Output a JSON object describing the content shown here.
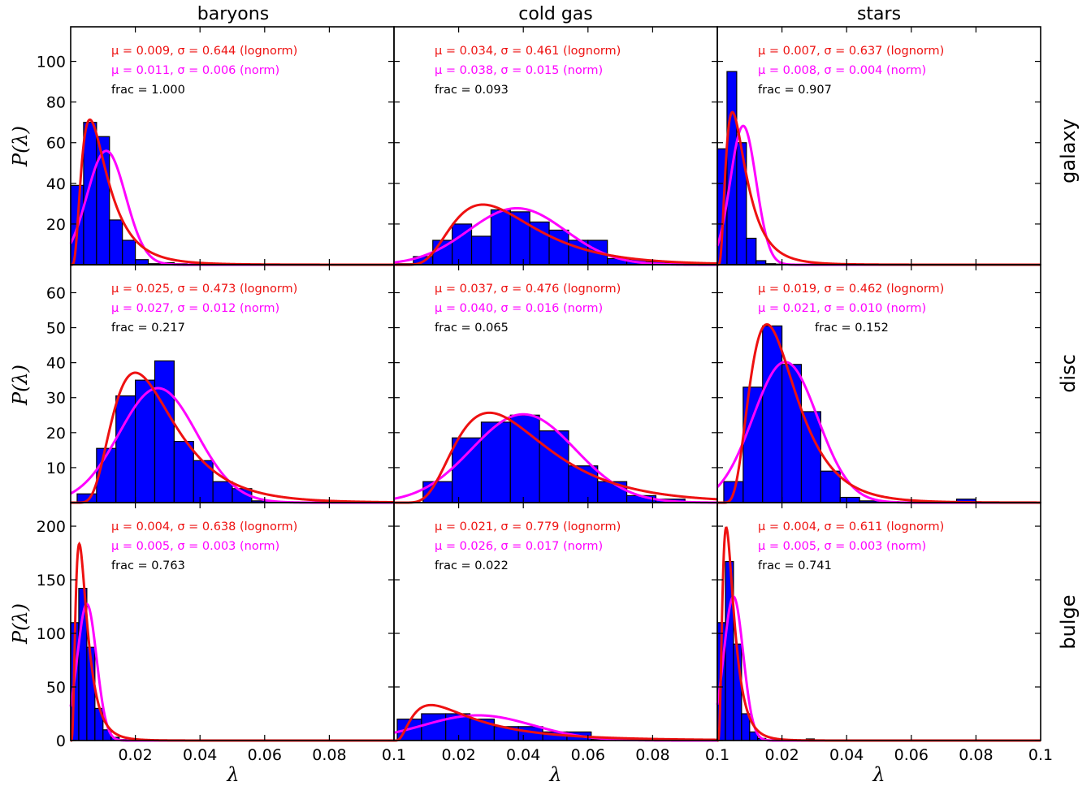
{
  "figure": {
    "col_titles": [
      "baryons",
      "cold gas",
      "stars"
    ],
    "row_titles": [
      "galaxy",
      "disc",
      "bulge"
    ],
    "xlabel": "λ",
    "ylabel": "P(λ)",
    "xlim": [
      0,
      0.1
    ],
    "x_ticks": [
      "0.02",
      "0.04",
      "0.06",
      "0.08",
      "0.1"
    ],
    "colors": {
      "lognorm": "#ee1111",
      "norm": "#ff00ff",
      "hist": "#0000ff",
      "frac": "#000000"
    }
  },
  "chart_data": [
    {
      "type": "bar",
      "row": "galaxy",
      "col": "baryons",
      "ylim": [
        0,
        117
      ],
      "yticks": [
        20,
        40,
        60,
        80,
        100
      ],
      "ann_mu_sigma_lognorm": "μ = 0.009, σ = 0.644 (lognorm)",
      "ann_mu_sigma_norm": "μ = 0.011, σ = 0.006 (norm)",
      "ann_frac": "frac = 1.000",
      "lognorm": {
        "mu": 0.009,
        "sigma": 0.644
      },
      "norm": {
        "mu": 0.011,
        "sigma": 0.006
      },
      "frac": 1.0,
      "bin_width": 0.004,
      "bin_start": 0,
      "hist": [
        39,
        70,
        63,
        22,
        12,
        2.5,
        0.5,
        1,
        0.5
      ]
    },
    {
      "type": "bar",
      "row": "galaxy",
      "col": "cold gas",
      "ylim": [
        0,
        117
      ],
      "yticks": [
        20,
        40,
        60,
        80,
        100
      ],
      "ann_mu_sigma_lognorm": "μ = 0.034, σ = 0.461 (lognorm)",
      "ann_mu_sigma_norm": "μ = 0.038, σ = 0.015 (norm)",
      "ann_frac": "frac = 0.093",
      "lognorm": {
        "mu": 0.034,
        "sigma": 0.461
      },
      "norm": {
        "mu": 0.038,
        "sigma": 0.015
      },
      "frac": 0.093,
      "bin_width": 0.006,
      "bin_start": 0,
      "hist": [
        0.5,
        4,
        12,
        20,
        14,
        27,
        26,
        21,
        17,
        12,
        12,
        3,
        2.5,
        1.5,
        1,
        0.5
      ]
    },
    {
      "type": "bar",
      "row": "galaxy",
      "col": "stars",
      "ylim": [
        0,
        117
      ],
      "yticks": [
        20,
        40,
        60,
        80,
        100
      ],
      "ann_mu_sigma_lognorm": "μ = 0.007, σ = 0.637 (lognorm)",
      "ann_mu_sigma_norm": "μ = 0.008, σ = 0.004 (norm)",
      "ann_frac": "frac = 0.907",
      "lognorm": {
        "mu": 0.007,
        "sigma": 0.637
      },
      "norm": {
        "mu": 0.008,
        "sigma": 0.004
      },
      "frac": 0.907,
      "bin_width": 0.003,
      "bin_start": 0,
      "hist": [
        57,
        95,
        60,
        13,
        2,
        0.5,
        0.3,
        0.3
      ]
    },
    {
      "type": "bar",
      "row": "disc",
      "col": "baryons",
      "ylim": [
        0,
        68
      ],
      "yticks": [
        10,
        20,
        30,
        40,
        50,
        60
      ],
      "ann_mu_sigma_lognorm": "μ = 0.025, σ = 0.473 (lognorm)",
      "ann_mu_sigma_norm": "μ = 0.027, σ = 0.012 (norm)",
      "ann_frac": "frac = 0.217",
      "lognorm": {
        "mu": 0.025,
        "sigma": 0.473
      },
      "norm": {
        "mu": 0.027,
        "sigma": 0.012
      },
      "frac": 0.217,
      "bin_width": 0.006,
      "bin_start": 0.002,
      "hist": [
        2.5,
        15.5,
        30.5,
        35,
        40.5,
        17.5,
        12,
        6,
        4,
        0.5
      ]
    },
    {
      "type": "bar",
      "row": "disc",
      "col": "cold gas",
      "ylim": [
        0,
        68
      ],
      "yticks": [
        10,
        20,
        30,
        40,
        50,
        60
      ],
      "ann_mu_sigma_lognorm": "μ = 0.037, σ = 0.476 (lognorm)",
      "ann_mu_sigma_norm": "μ = 0.040, σ = 0.016 (norm)",
      "ann_frac": "frac = 0.065",
      "lognorm": {
        "mu": 0.037,
        "sigma": 0.476
      },
      "norm": {
        "mu": 0.04,
        "sigma": 0.016
      },
      "frac": 0.065,
      "bin_width": 0.009,
      "bin_start": 0.009,
      "hist": [
        6,
        18.5,
        23,
        25,
        20.5,
        10.5,
        6,
        2,
        1
      ]
    },
    {
      "type": "bar",
      "row": "disc",
      "col": "stars",
      "ylim": [
        0,
        68
      ],
      "yticks": [
        10,
        20,
        30,
        40,
        50,
        60
      ],
      "ann_mu_sigma_lognorm": "μ = 0.019, σ = 0.462 (lognorm)",
      "ann_mu_sigma_norm": "μ = 0.021, σ = 0.010 (norm)",
      "ann_frac": "frac = 0.152",
      "lognorm": {
        "mu": 0.019,
        "sigma": 0.462
      },
      "norm": {
        "mu": 0.021,
        "sigma": 0.01
      },
      "frac": 0.152,
      "bin_width": 0.006,
      "bin_start": 0.002,
      "hist": [
        6,
        33,
        50.5,
        39.5,
        26,
        9,
        1.5,
        0.5,
        0.3,
        0.2,
        0.2,
        0.2,
        1
      ]
    },
    {
      "type": "bar",
      "row": "bulge",
      "col": "baryons",
      "ylim": [
        0,
        222
      ],
      "yticks": [
        0,
        50,
        100,
        150,
        200
      ],
      "ann_mu_sigma_lognorm": "μ = 0.004, σ = 0.638 (lognorm)",
      "ann_mu_sigma_norm": "μ = 0.005, σ = 0.003 (norm)",
      "ann_frac": "frac = 0.763",
      "lognorm": {
        "mu": 0.004,
        "sigma": 0.638
      },
      "norm": {
        "mu": 0.005,
        "sigma": 0.003
      },
      "frac": 0.763,
      "bin_width": 0.0025,
      "bin_start": 0,
      "hist": [
        110,
        142,
        87,
        30,
        10,
        3,
        1
      ]
    },
    {
      "type": "bar",
      "row": "bulge",
      "col": "cold gas",
      "ylim": [
        0,
        222
      ],
      "yticks": [
        0,
        50,
        100,
        150,
        200
      ],
      "ann_mu_sigma_lognorm": "μ = 0.021, σ = 0.779 (lognorm)",
      "ann_mu_sigma_norm": "μ = 0.026, σ = 0.017 (norm)",
      "ann_frac": "frac = 0.022",
      "lognorm": {
        "mu": 0.021,
        "sigma": 0.779
      },
      "norm": {
        "mu": 0.026,
        "sigma": 0.017
      },
      "frac": 0.022,
      "bin_width": 0.0075,
      "bin_start": 0.001,
      "hist": [
        20,
        25,
        25,
        20,
        13,
        13,
        8,
        8,
        1,
        0.5
      ]
    },
    {
      "type": "bar",
      "row": "bulge",
      "col": "stars",
      "ylim": [
        0,
        222
      ],
      "yticks": [
        0,
        50,
        100,
        150,
        200
      ],
      "ann_mu_sigma_lognorm": "μ = 0.004, σ = 0.611 (lognorm)",
      "ann_mu_sigma_norm": "μ = 0.005, σ = 0.003 (norm)",
      "ann_frac": "frac = 0.741",
      "lognorm": {
        "mu": 0.004,
        "sigma": 0.611
      },
      "norm": {
        "mu": 0.005,
        "sigma": 0.003
      },
      "frac": 0.741,
      "bin_width": 0.0025,
      "bin_start": 0,
      "hist": [
        110,
        167,
        90,
        25,
        8,
        2,
        0.5,
        0,
        0,
        0,
        0,
        1.5
      ]
    }
  ]
}
